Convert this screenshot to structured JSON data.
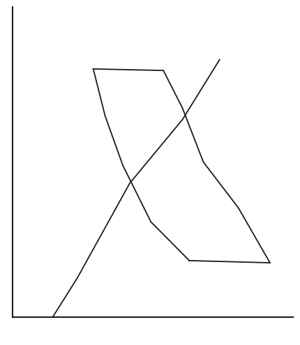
{
  "chart_data": {
    "type": "line",
    "tick_labels": false,
    "grid": false,
    "xlim": [
      0,
      10
    ],
    "ylim": [
      0,
      10
    ],
    "xticks": [],
    "yticks": [],
    "color": "#1a1a1a",
    "line_style": "solid",
    "series": [
      {
        "x": [
          2.875,
          5.375
        ],
        "values": [
          8.0,
          7.95
        ]
      },
      {
        "x": [
          5.375,
          6.05,
          6.8,
          8.05,
          9.175
        ],
        "values": [
          7.95,
          6.75,
          5.0,
          3.52,
          1.75
        ]
      },
      {
        "x": [
          9.175,
          6.3
        ],
        "values": [
          1.75,
          1.82
        ]
      },
      {
        "x": [
          6.3,
          4.93,
          3.93,
          3.3,
          2.875
        ],
        "values": [
          1.82,
          3.07,
          4.89,
          6.48,
          8.0
        ]
      },
      {
        "x": [
          1.43,
          2.3,
          4.18,
          6.05,
          7.38
        ],
        "values": [
          0.0,
          1.25,
          4.32,
          6.36,
          8.3
        ]
      }
    ]
  }
}
